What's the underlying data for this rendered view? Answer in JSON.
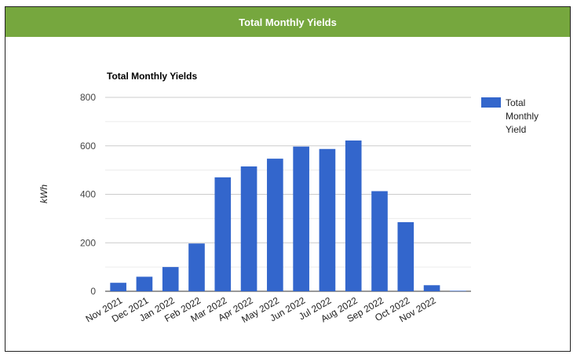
{
  "panel": {
    "title": "Total Monthly Yields"
  },
  "chart_data": {
    "type": "bar",
    "title": "Total Monthly Yields",
    "xlabel": "",
    "ylabel": "kWh",
    "ylim": [
      0,
      800
    ],
    "yticks": [
      0,
      200,
      400,
      600,
      800
    ],
    "grid": true,
    "legend_position": "right",
    "categories": [
      "Nov 2021",
      "Dec 2021",
      "Jan 2022",
      "Feb 2022",
      "Mar 2022",
      "Apr 2022",
      "May 2022",
      "Jun 2022",
      "Jul 2022",
      "Aug 2022",
      "Sep 2022",
      "Oct 2022",
      "Nov 2022",
      ""
    ],
    "series": [
      {
        "name": "Total Monthly Yield",
        "color": "#3366cc",
        "values": [
          35,
          60,
          100,
          197,
          470,
          515,
          547,
          597,
          587,
          622,
          413,
          285,
          25,
          2
        ]
      }
    ]
  }
}
